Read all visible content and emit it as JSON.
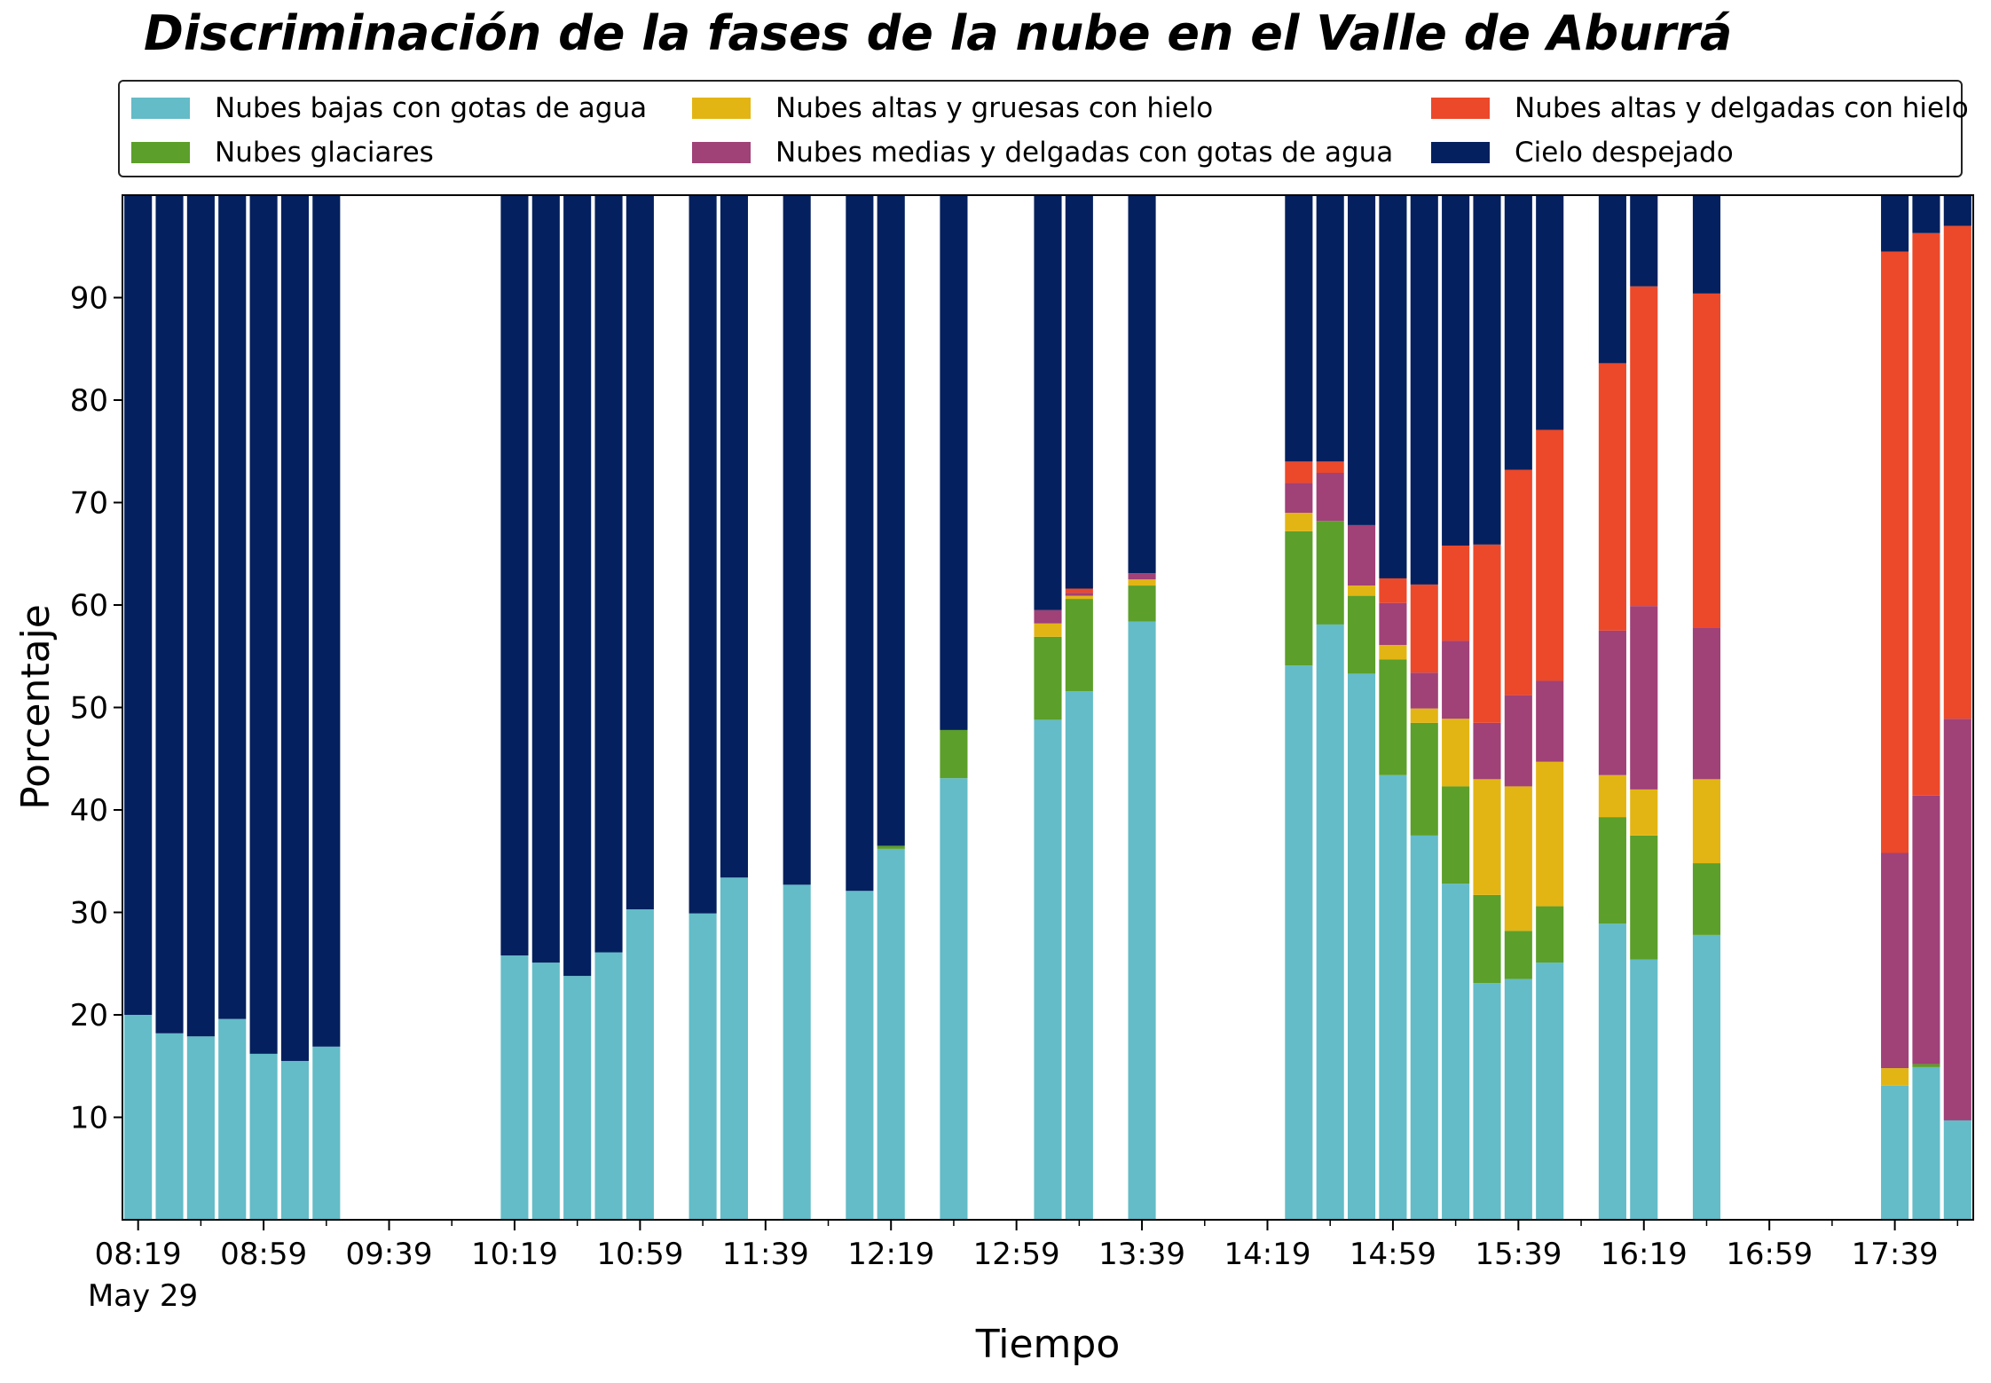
{
  "chart_data": {
    "type": "bar",
    "stacked": true,
    "title": "Discriminación de la fases de la nube en el Valle de Aburrá",
    "xlabel": "Tiempo",
    "ylabel": "Porcentaje",
    "ylim": [
      0,
      100
    ],
    "y_ticks": [
      10,
      20,
      30,
      40,
      50,
      60,
      70,
      80,
      90
    ],
    "x_ticks": [
      "08:19",
      "08:59",
      "09:39",
      "10:19",
      "10:59",
      "11:39",
      "12:19",
      "12:59",
      "13:39",
      "14:19",
      "14:59",
      "15:39",
      "16:19",
      "16:59",
      "17:39"
    ],
    "x_sublabel": "May 29",
    "legend_position": "top",
    "series": [
      {
        "name": "Nubes bajas con gotas de agua",
        "color": "#63bcc8"
      },
      {
        "name": "Nubes glaciares",
        "color": "#5c9f2a"
      },
      {
        "name": "Nubes altas y gruesas con hielo",
        "color": "#e3b514"
      },
      {
        "name": "Nubes medias y delgadas con gotas de agua",
        "color": "#a04178"
      },
      {
        "name": "Nubes altas y delgadas con hielo",
        "color": "#ec482a"
      },
      {
        "name": "Cielo despejado",
        "color": "#04205e"
      }
    ],
    "bars": [
      {
        "time": "08:19",
        "values": [
          20,
          0,
          0,
          0,
          0,
          80
        ]
      },
      {
        "time": "08:29",
        "values": [
          18.2,
          0,
          0,
          0,
          0,
          81.8
        ]
      },
      {
        "time": "08:39",
        "values": [
          17.9,
          0,
          0,
          0,
          0,
          82.1
        ]
      },
      {
        "time": "08:49",
        "values": [
          19.6,
          0,
          0,
          0,
          0,
          80.4
        ]
      },
      {
        "time": "08:59",
        "values": [
          16.2,
          0,
          0,
          0,
          0,
          83.8
        ]
      },
      {
        "time": "09:09",
        "values": [
          15.5,
          0,
          0,
          0,
          0,
          84.5
        ]
      },
      {
        "time": "09:19",
        "values": [
          16.9,
          0,
          0,
          0,
          0,
          83.1
        ]
      },
      {
        "time": "10:19",
        "values": [
          25.8,
          0,
          0,
          0,
          0,
          74.2
        ]
      },
      {
        "time": "10:29",
        "values": [
          25.1,
          0,
          0,
          0,
          0,
          74.9
        ]
      },
      {
        "time": "10:39",
        "values": [
          23.8,
          0,
          0,
          0,
          0,
          76.2
        ]
      },
      {
        "time": "10:49",
        "values": [
          26.1,
          0,
          0,
          0,
          0,
          73.9
        ]
      },
      {
        "time": "10:59",
        "values": [
          30.3,
          0,
          0,
          0,
          0,
          69.7
        ]
      },
      {
        "time": "11:19",
        "values": [
          29.9,
          0,
          0,
          0,
          0,
          70.1
        ]
      },
      {
        "time": "11:29",
        "values": [
          33.4,
          0,
          0,
          0,
          0,
          66.6
        ]
      },
      {
        "time": "11:49",
        "values": [
          32.7,
          0,
          0,
          0,
          0,
          67.3
        ]
      },
      {
        "time": "12:09",
        "values": [
          32.1,
          0,
          0,
          0,
          0,
          67.9
        ]
      },
      {
        "time": "12:19",
        "values": [
          36.2,
          0.3,
          0,
          0,
          0,
          63.5
        ]
      },
      {
        "time": "12:39",
        "values": [
          43.1,
          4.7,
          0,
          0,
          0,
          52.2
        ]
      },
      {
        "time": "13:09",
        "values": [
          48.8,
          8.1,
          1.3,
          1.3,
          0,
          40.5
        ]
      },
      {
        "time": "13:19",
        "values": [
          51.6,
          9.0,
          0.3,
          0.3,
          0.4,
          38.4
        ]
      },
      {
        "time": "13:39",
        "values": [
          58.4,
          3.5,
          0.6,
          0.6,
          0,
          36.9
        ]
      },
      {
        "time": "14:29",
        "values": [
          54.1,
          13.1,
          1.8,
          2.9,
          2.1,
          26.0
        ]
      },
      {
        "time": "14:39",
        "values": [
          58.1,
          10.1,
          0,
          4.7,
          1.1,
          26.0
        ]
      },
      {
        "time": "14:49",
        "values": [
          53.3,
          7.6,
          1.0,
          5.9,
          0,
          32.2
        ]
      },
      {
        "time": "14:59",
        "values": [
          43.4,
          11.3,
          1.4,
          4.1,
          2.4,
          37.4
        ]
      },
      {
        "time": "15:09",
        "values": [
          37.5,
          11.0,
          1.4,
          3.5,
          8.6,
          38.0
        ]
      },
      {
        "time": "15:19",
        "values": [
          32.8,
          9.5,
          6.6,
          7.6,
          9.3,
          34.2
        ]
      },
      {
        "time": "15:29",
        "values": [
          23.1,
          8.6,
          11.3,
          5.5,
          17.4,
          34.1
        ]
      },
      {
        "time": "15:39",
        "values": [
          23.5,
          4.7,
          14.1,
          8.9,
          22.0,
          26.8
        ]
      },
      {
        "time": "15:49",
        "values": [
          25.1,
          5.5,
          14.1,
          7.9,
          24.5,
          22.9
        ]
      },
      {
        "time": "16:09",
        "values": [
          28.9,
          10.4,
          4.1,
          14.1,
          26.1,
          16.4
        ]
      },
      {
        "time": "16:19",
        "values": [
          25.4,
          12.1,
          4.5,
          17.9,
          31.2,
          8.9
        ]
      },
      {
        "time": "16:39",
        "values": [
          27.8,
          7.0,
          8.2,
          14.8,
          32.6,
          9.6
        ]
      },
      {
        "time": "17:39",
        "values": [
          13.1,
          0,
          1.7,
          21.0,
          58.7,
          5.5
        ]
      },
      {
        "time": "17:49",
        "values": [
          14.9,
          0.3,
          0,
          26.2,
          54.9,
          3.7
        ]
      },
      {
        "time": "17:59",
        "values": [
          9.7,
          0,
          0,
          39.2,
          48.1,
          3.0
        ]
      }
    ]
  }
}
